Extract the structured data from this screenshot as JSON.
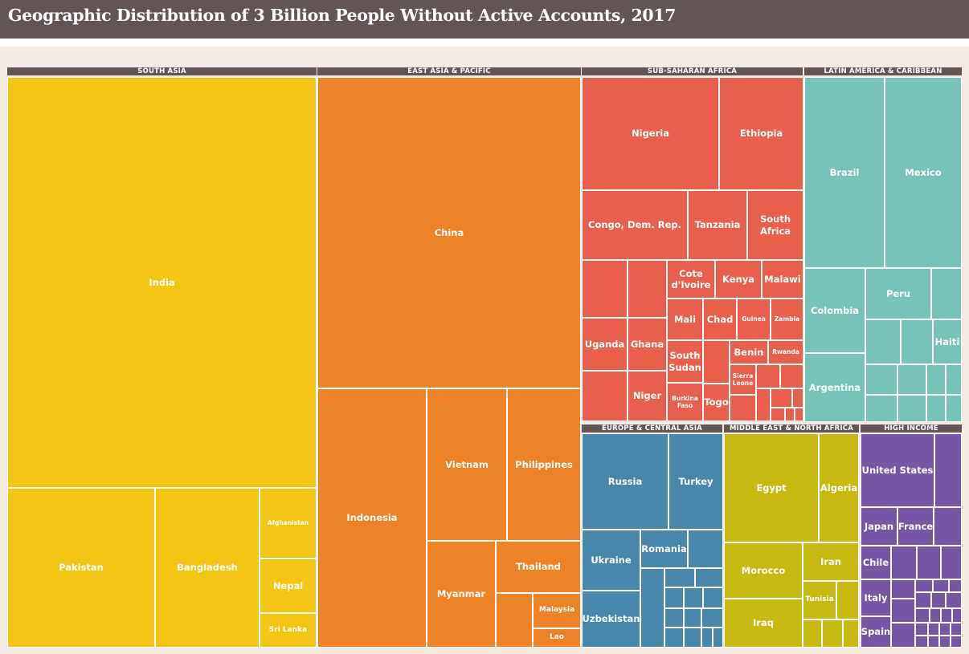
{
  "title": "Geographic Distribution of 3 Billion People Without Active Accounts, 2017",
  "chart_data": {
    "type": "treemap",
    "title": "Geographic Distribution of 3 Billion People Without Active Accounts, 2017",
    "regions": [
      {
        "name": "SOUTH ASIA",
        "color": "#f3c515",
        "countries": [
          {
            "name": "India",
            "value": 13.2
          },
          {
            "name": "Pakistan",
            "value": 3.8
          },
          {
            "name": "Bangladesh",
            "value": 2.6
          },
          {
            "name": "Afghanistan",
            "value": 0.5
          },
          {
            "name": "Nepal",
            "value": 0.5
          },
          {
            "name": "Sri Lanka",
            "value": 0.3
          }
        ]
      },
      {
        "name": "EAST ASIA & PACIFIC",
        "color": "#ee8229",
        "countries": [
          {
            "name": "China",
            "value": 7.7
          },
          {
            "name": "Indonesia",
            "value": 3.1
          },
          {
            "name": "Vietnam",
            "value": 1.5
          },
          {
            "name": "Philippines",
            "value": 1.5
          },
          {
            "name": "Myanmar",
            "value": 1.0
          },
          {
            "name": "Thailand",
            "value": 0.5
          },
          {
            "name": "Malaysia",
            "value": 0.2
          },
          {
            "name": "Lao",
            "value": 0.1
          },
          {
            "name": "",
            "value": 0.2
          }
        ]
      },
      {
        "name": "SUB-SAHARAN AFRICA",
        "color": "#e8604b",
        "countries": [
          {
            "name": "Nigeria",
            "value": 2.4
          },
          {
            "name": "Ethiopia",
            "value": 1.6
          },
          {
            "name": "Congo, Dem. Rep.",
            "value": 1.3
          },
          {
            "name": "Tanzania",
            "value": 0.8
          },
          {
            "name": "South\nAfrica",
            "value": 0.7
          },
          {
            "name": "Uganda",
            "value": 0.5
          },
          {
            "name": "Ghana",
            "value": 0.4
          },
          {
            "name": "Cote\nd'Ivoire",
            "value": 0.5
          },
          {
            "name": "Kenya",
            "value": 0.4
          },
          {
            "name": "Malawi",
            "value": 0.4
          },
          {
            "name": "Mali",
            "value": 0.3
          },
          {
            "name": "Chad",
            "value": 0.3
          },
          {
            "name": "Guinea",
            "value": 0.2
          },
          {
            "name": "Zambia",
            "value": 0.2
          },
          {
            "name": "South\nSudan",
            "value": 0.3
          },
          {
            "name": "Benin",
            "value": 0.2
          },
          {
            "name": "Rwanda",
            "value": 0.2
          },
          {
            "name": "Sierra\nLeone",
            "value": 0.1
          },
          {
            "name": "Niger",
            "value": 0.3
          },
          {
            "name": "Burkina\nFaso",
            "value": 0.3
          },
          {
            "name": "Togo",
            "value": 0.1
          }
        ]
      },
      {
        "name": "LATIN AMERICA & CARIBBEAN",
        "color": "#76c3b9",
        "countries": [
          {
            "name": "Brazil",
            "value": 1.8
          },
          {
            "name": "Mexico",
            "value": 1.8
          },
          {
            "name": "Colombia",
            "value": 0.9
          },
          {
            "name": "Peru",
            "value": 0.5
          },
          {
            "name": "Argentina",
            "value": 0.7
          },
          {
            "name": "Haiti",
            "value": 0.2
          }
        ]
      },
      {
        "name": "EUROPE & CENTRAL ASIA",
        "color": "#4687ab",
        "countries": [
          {
            "name": "Russia",
            "value": 1.0
          },
          {
            "name": "Turkey",
            "value": 0.7
          },
          {
            "name": "Ukraine",
            "value": 0.4
          },
          {
            "name": "Romania",
            "value": 0.3
          },
          {
            "name": "Uzbekistan",
            "value": 0.4
          }
        ]
      },
      {
        "name": "MIDDLE EAST & NORTH AFRICA",
        "color": "#c7b912",
        "countries": [
          {
            "name": "Egypt",
            "value": 1.2
          },
          {
            "name": "Algeria",
            "value": 0.5
          },
          {
            "name": "Morocco",
            "value": 0.7
          },
          {
            "name": "Iran",
            "value": 0.2
          },
          {
            "name": "Iraq",
            "value": 0.6
          },
          {
            "name": "Tunisia",
            "value": 0.2
          }
        ]
      },
      {
        "name": "HIGH INCOME",
        "color": "#7656a5",
        "countries": [
          {
            "name": "United States",
            "value": 0.6
          },
          {
            "name": "Japan",
            "value": 0.2
          },
          {
            "name": "France",
            "value": 0.2
          },
          {
            "name": "Chile",
            "value": 0.2
          },
          {
            "name": "Italy",
            "value": 0.2
          },
          {
            "name": "Spain",
            "value": 0.1
          }
        ]
      }
    ]
  }
}
